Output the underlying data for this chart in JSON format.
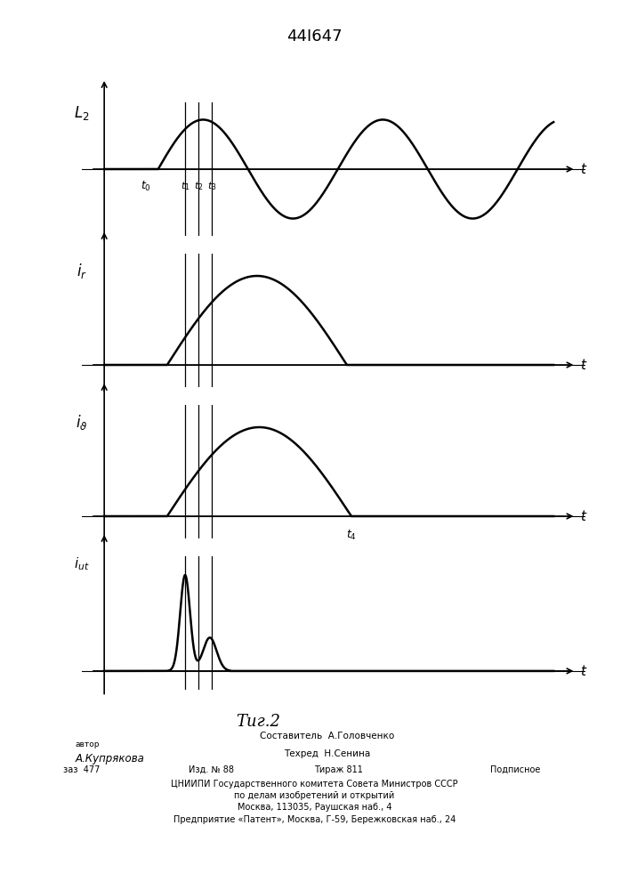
{
  "title": "44I647",
  "fig_caption": "Τиг.2",
  "background_color": "#ffffff",
  "line_color": "#000000",
  "line_width": 1.8,
  "t0": 1.2,
  "t1": 1.8,
  "t2": 2.1,
  "t3": 2.4,
  "t4": 5.5,
  "T": 10.0,
  "footer_sestavitel": "Составитель  А.Головченко",
  "footer_tehred": "Техред  Н.Сенина",
  "footer_avtor_label": "автор",
  "footer_avtor": "А.Купрякова",
  "footer_zak": "заз  477",
  "footer_izd": "Изд. № 88",
  "footer_tirazh": "Тираж 811",
  "footer_podpisnoe": "Подписное",
  "footer_org1": "ЦНИИПИ Государственного комитета Совета Министров СССР",
  "footer_org2": "по делам изобретений и открытий",
  "footer_org3": "Москва, 113035, Раушская наб., 4",
  "footer_patent": "Предприятие «Патент», Москва, Г-59, Бережковская наб., 24"
}
